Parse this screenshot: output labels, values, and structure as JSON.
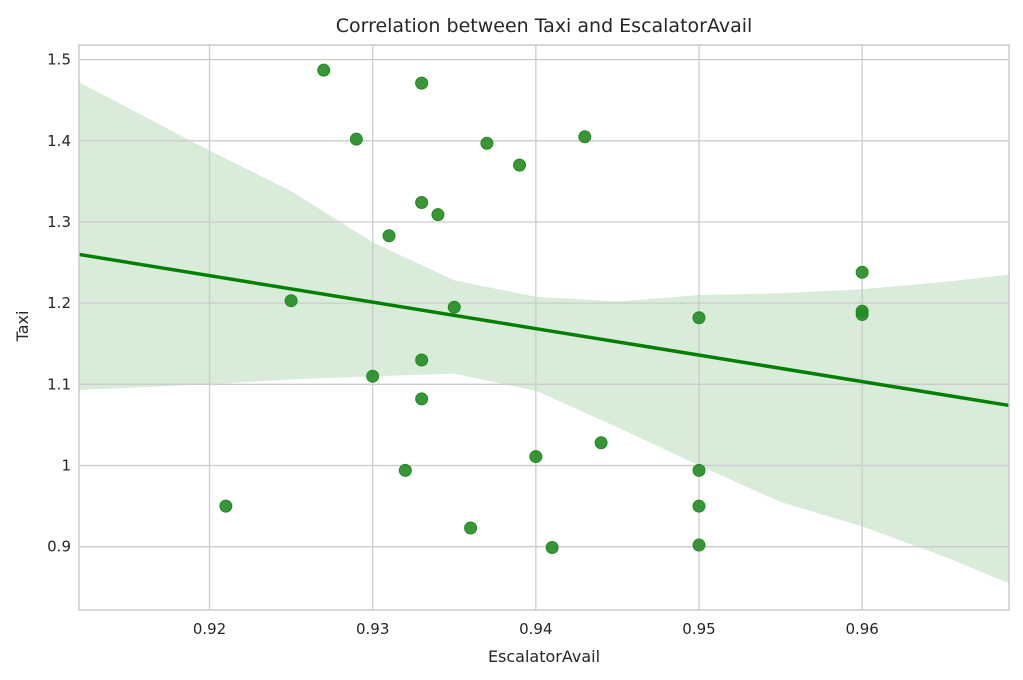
{
  "chart_data": {
    "type": "scatter",
    "title": "Correlation between Taxi and EscalatorAvail",
    "xlabel": "EscalatorAvail",
    "ylabel": "Taxi",
    "xlim": [
      0.912,
      0.969
    ],
    "ylim": [
      0.822,
      1.518
    ],
    "xticks": [
      0.92,
      0.93,
      0.94,
      0.95,
      0.96
    ],
    "xtick_labels": [
      "0.92",
      "0.93",
      "0.94",
      "0.95",
      "0.96"
    ],
    "yticks": [
      0.9,
      1.0,
      1.1,
      1.2,
      1.3,
      1.4,
      1.5
    ],
    "ytick_labels": [
      "0.9",
      "1",
      "1.1",
      "1.2",
      "1.3",
      "1.4",
      "1.5"
    ],
    "grid": true,
    "points": [
      {
        "x": 0.921,
        "y": 0.95
      },
      {
        "x": 0.925,
        "y": 1.203
      },
      {
        "x": 0.927,
        "y": 1.487
      },
      {
        "x": 0.929,
        "y": 1.402
      },
      {
        "x": 0.93,
        "y": 1.11
      },
      {
        "x": 0.931,
        "y": 1.283
      },
      {
        "x": 0.932,
        "y": 0.994
      },
      {
        "x": 0.933,
        "y": 1.471
      },
      {
        "x": 0.933,
        "y": 1.324
      },
      {
        "x": 0.933,
        "y": 1.13
      },
      {
        "x": 0.933,
        "y": 1.082
      },
      {
        "x": 0.934,
        "y": 1.309
      },
      {
        "x": 0.935,
        "y": 1.195
      },
      {
        "x": 0.936,
        "y": 0.923
      },
      {
        "x": 0.937,
        "y": 1.397
      },
      {
        "x": 0.939,
        "y": 1.37
      },
      {
        "x": 0.94,
        "y": 1.011
      },
      {
        "x": 0.941,
        "y": 0.899
      },
      {
        "x": 0.943,
        "y": 1.405
      },
      {
        "x": 0.944,
        "y": 1.028
      },
      {
        "x": 0.95,
        "y": 1.182
      },
      {
        "x": 0.95,
        "y": 0.994
      },
      {
        "x": 0.95,
        "y": 0.95
      },
      {
        "x": 0.95,
        "y": 0.902
      },
      {
        "x": 0.96,
        "y": 1.238
      },
      {
        "x": 0.96,
        "y": 1.19
      },
      {
        "x": 0.96,
        "y": 1.186
      }
    ],
    "regression_line": {
      "x": [
        0.912,
        0.969
      ],
      "y": [
        1.26,
        1.074
      ]
    },
    "confidence_band": {
      "x": [
        0.912,
        0.92,
        0.925,
        0.93,
        0.935,
        0.94,
        0.945,
        0.95,
        0.955,
        0.96,
        0.965,
        0.969
      ],
      "upper": [
        1.472,
        1.388,
        1.338,
        1.275,
        1.228,
        1.208,
        1.202,
        1.21,
        1.212,
        1.217,
        1.226,
        1.235
      ],
      "lower": [
        1.093,
        1.1,
        1.106,
        1.11,
        1.113,
        1.092,
        1.047,
        1.0,
        0.955,
        0.925,
        0.888,
        0.855
      ]
    },
    "colors": {
      "points": "#228b22",
      "line": "#008000",
      "band": "#d9ebd9",
      "grid": "#cccccc",
      "text": "#262626"
    }
  }
}
